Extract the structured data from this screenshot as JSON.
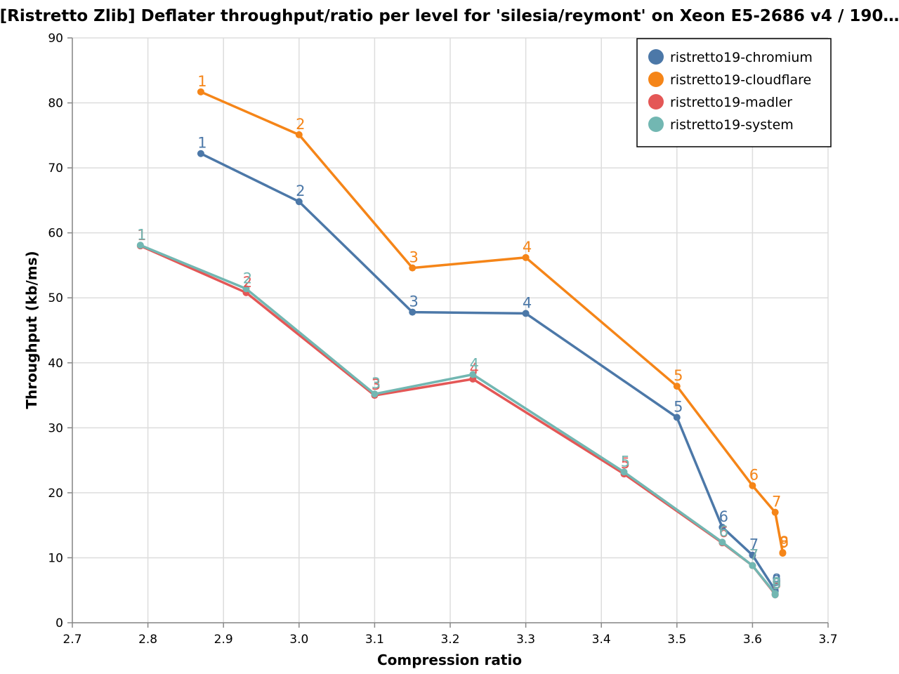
{
  "chart_data": {
    "type": "line",
    "title": "[Ristretto Zlib] Deflater throughput/ratio per level for 'silesia/reymont' on Xeon E5-2686 v4 / 190…",
    "xlabel": "Compression ratio",
    "ylabel": "Throughput (kb/ms)",
    "xlim": [
      2.7,
      3.7
    ],
    "ylim": [
      0,
      90
    ],
    "xticks": [
      "2.7",
      "2.8",
      "2.9",
      "3.0",
      "3.1",
      "3.2",
      "3.3",
      "3.4",
      "3.5",
      "3.6",
      "3.7"
    ],
    "yticks": [
      "0",
      "10",
      "20",
      "30",
      "40",
      "50",
      "60",
      "70",
      "80",
      "90"
    ],
    "grid": true,
    "legend_position": "top-right",
    "series": [
      {
        "name": "ristretto19-chromium",
        "color": "#4c78a8",
        "points": [
          {
            "x": 2.87,
            "y": 72.2,
            "label": "1"
          },
          {
            "x": 3.0,
            "y": 64.8,
            "label": "2"
          },
          {
            "x": 3.15,
            "y": 47.8,
            "label": "3"
          },
          {
            "x": 3.3,
            "y": 47.6,
            "label": "4"
          },
          {
            "x": 3.5,
            "y": 31.6,
            "label": "5"
          },
          {
            "x": 3.56,
            "y": 14.7,
            "label": "6"
          },
          {
            "x": 3.6,
            "y": 10.4,
            "label": "7"
          },
          {
            "x": 3.63,
            "y": 5.0,
            "label": "8"
          },
          {
            "x": 3.63,
            "y": 4.8,
            "label": "9"
          }
        ]
      },
      {
        "name": "ristretto19-cloudflare",
        "color": "#f58518",
        "points": [
          {
            "x": 2.87,
            "y": 81.7,
            "label": "1"
          },
          {
            "x": 3.0,
            "y": 75.1,
            "label": "2"
          },
          {
            "x": 3.15,
            "y": 54.6,
            "label": "3"
          },
          {
            "x": 3.3,
            "y": 56.2,
            "label": "4"
          },
          {
            "x": 3.5,
            "y": 36.4,
            "label": "5"
          },
          {
            "x": 3.6,
            "y": 21.1,
            "label": "6"
          },
          {
            "x": 3.63,
            "y": 17.0,
            "label": "7"
          },
          {
            "x": 3.64,
            "y": 10.8,
            "label": "8"
          },
          {
            "x": 3.64,
            "y": 10.7,
            "label": "9"
          }
        ]
      },
      {
        "name": "ristretto19-madler",
        "color": "#e45756",
        "points": [
          {
            "x": 2.79,
            "y": 58.0,
            "label": "1"
          },
          {
            "x": 2.93,
            "y": 50.8,
            "label": "2"
          },
          {
            "x": 3.1,
            "y": 35.0,
            "label": "3"
          },
          {
            "x": 3.23,
            "y": 37.5,
            "label": "4"
          },
          {
            "x": 3.43,
            "y": 22.9,
            "label": "5"
          },
          {
            "x": 3.56,
            "y": 12.3,
            "label": "6"
          },
          {
            "x": 3.6,
            "y": 8.8,
            "label": "7"
          },
          {
            "x": 3.63,
            "y": 4.4,
            "label": "8"
          },
          {
            "x": 3.63,
            "y": 4.3,
            "label": "9"
          }
        ]
      },
      {
        "name": "ristretto19-system",
        "color": "#72b7b2",
        "points": [
          {
            "x": 2.79,
            "y": 58.1,
            "label": "1"
          },
          {
            "x": 2.93,
            "y": 51.4,
            "label": "2"
          },
          {
            "x": 3.1,
            "y": 35.2,
            "label": "3"
          },
          {
            "x": 3.23,
            "y": 38.2,
            "label": "4"
          },
          {
            "x": 3.43,
            "y": 23.2,
            "label": "5"
          },
          {
            "x": 3.56,
            "y": 12.4,
            "label": "6"
          },
          {
            "x": 3.6,
            "y": 8.8,
            "label": "7"
          },
          {
            "x": 3.63,
            "y": 4.5,
            "label": "8"
          },
          {
            "x": 3.63,
            "y": 4.3,
            "label": "9"
          }
        ]
      }
    ]
  }
}
